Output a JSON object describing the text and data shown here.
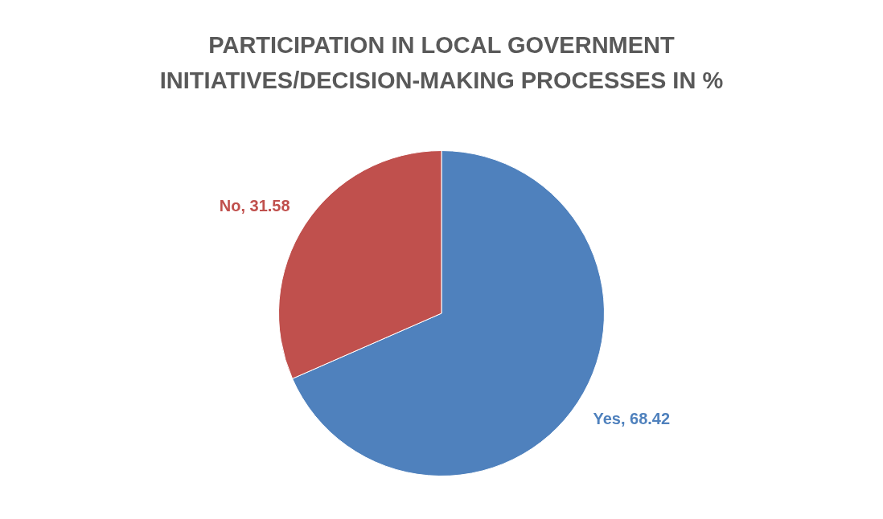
{
  "chart_data": {
    "type": "pie",
    "title": "PARTICIPATION IN LOCAL GOVERNMENT INITIATIVES/DECISION-MAKING PROCESSES IN %",
    "categories": [
      "Yes",
      "No"
    ],
    "values": [
      68.42,
      31.58
    ],
    "value_labels": [
      ", 68.42",
      ", 31.58"
    ],
    "colors": [
      "#4f81bd",
      "#c0504d"
    ]
  }
}
